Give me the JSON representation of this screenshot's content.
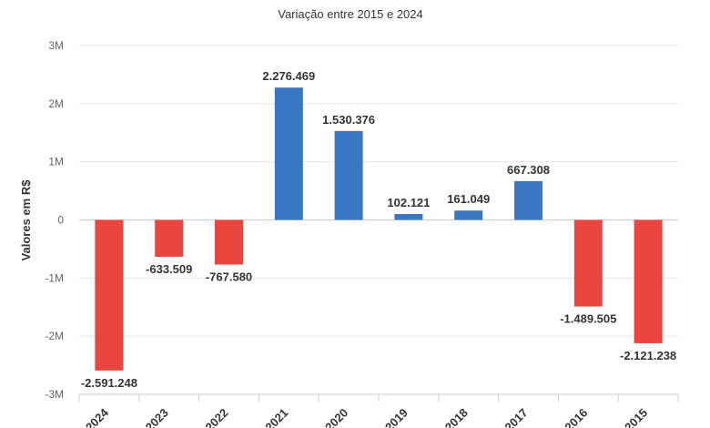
{
  "chart_data": {
    "type": "bar",
    "title": "",
    "subtitle": "Variação entre 2015 e 2024",
    "xlabel": "",
    "ylabel": "Valores em R$",
    "categories": [
      "2024",
      "2023",
      "2022",
      "2021",
      "2020",
      "2019",
      "2018",
      "2017",
      "2016",
      "2015"
    ],
    "values": [
      -2591248,
      -633509,
      -767580,
      2276469,
      1530376,
      102121,
      161049,
      667308,
      -1489505,
      -2121238
    ],
    "data_labels": [
      "-2.591.248",
      "-633.509",
      "-767.580",
      "2.276.469",
      "1.530.376",
      "102.121",
      "161.049",
      "667.308",
      "-1.489.505",
      "-2.121.238"
    ],
    "yticks": [
      3000000,
      2000000,
      1000000,
      0,
      -1000000,
      -2000000,
      -3000000
    ],
    "ytick_labels": [
      "3M",
      "2M",
      "1M",
      "0",
      "-1M",
      "-2M",
      "-3M"
    ],
    "ylim": [
      -3000000,
      3000000
    ],
    "grid": true,
    "legend": "none",
    "colors": {
      "positive": "#3a77c2",
      "negative": "#e8463f"
    }
  }
}
